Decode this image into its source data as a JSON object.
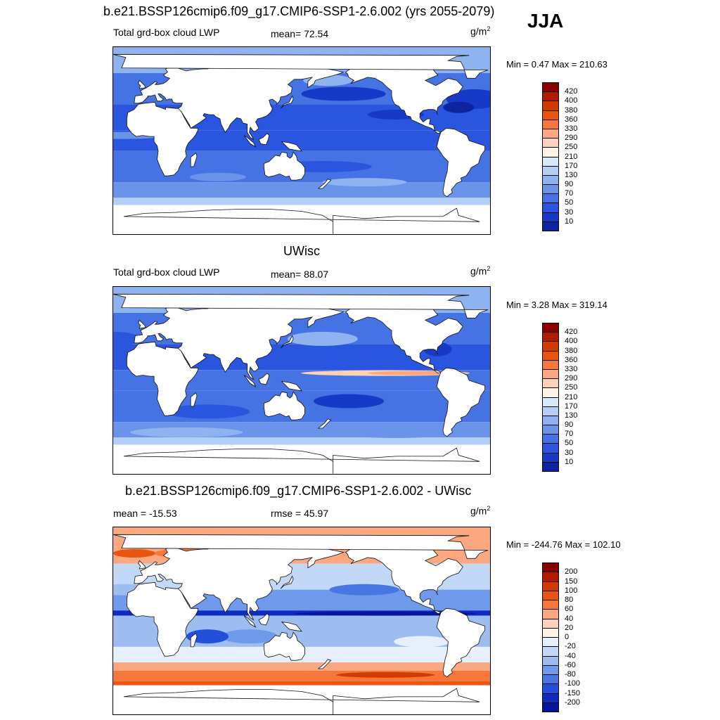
{
  "season": "JJA",
  "unit_base": "g/m",
  "unit_exp": "2",
  "panels": [
    {
      "id": "model",
      "title": "b.e21.BSSP126cmip6.f09_g17.CMIP6-SSP1-2.6.002 (yrs 2055-2079)",
      "left_label": "Total grd-box cloud LWP",
      "center_label": "mean=  72.54",
      "minmax": "Min =   0.47 Max = 210.63",
      "colorbar": {
        "labels": [
          "420",
          "400",
          "380",
          "360",
          "330",
          "290",
          "250",
          "210",
          "170",
          "130",
          "90",
          "70",
          "50",
          "30",
          "10"
        ],
        "colors": [
          "#8b0000",
          "#b31b00",
          "#d33a00",
          "#ea5410",
          "#f7773a",
          "#fba77f",
          "#fdd2b8",
          "#fff3e6",
          "#d8e8fb",
          "#b3cff6",
          "#8eb3f0",
          "#6a94ea",
          "#4573e3",
          "#2a55de",
          "#1639c8",
          "#0d23a0"
        ]
      }
    },
    {
      "id": "obs",
      "title": "UWisc",
      "left_label": "Total grd-box cloud LWP",
      "center_label": "mean=  88.07",
      "minmax": "Min =   3.28 Max = 319.14",
      "colorbar": {
        "labels": [
          "420",
          "400",
          "380",
          "360",
          "330",
          "290",
          "250",
          "210",
          "170",
          "130",
          "90",
          "70",
          "50",
          "30",
          "10"
        ],
        "colors": [
          "#8b0000",
          "#b31b00",
          "#d33a00",
          "#ea5410",
          "#f7773a",
          "#fba77f",
          "#fdd2b8",
          "#fff3e6",
          "#d8e8fb",
          "#b3cff6",
          "#8eb3f0",
          "#6a94ea",
          "#4573e3",
          "#2a55de",
          "#1639c8",
          "#0d23a0"
        ]
      }
    },
    {
      "id": "diff",
      "title": "b.e21.BSSP126cmip6.f09_g17.CMIP6-SSP1-2.6.002 - UWisc",
      "left_label": "mean = -15.53",
      "center_label": "rmse =  45.97",
      "minmax": "Min = -244.76 Max = 102.10",
      "colorbar": {
        "labels": [
          "200",
          "150",
          "100",
          "80",
          "60",
          "40",
          "20",
          "0",
          "-20",
          "-40",
          "-60",
          "-80",
          "-100",
          "-150",
          "-200"
        ],
        "colors": [
          "#8b0000",
          "#b31b00",
          "#d33a00",
          "#ea5410",
          "#f7773a",
          "#fba77f",
          "#fdd2b8",
          "#fff3e6",
          "#e6effb",
          "#c3d8f7",
          "#9dbdf1",
          "#6f99ea",
          "#4876e3",
          "#2250dc",
          "#0d2bc0",
          "#07159a"
        ]
      }
    }
  ]
}
